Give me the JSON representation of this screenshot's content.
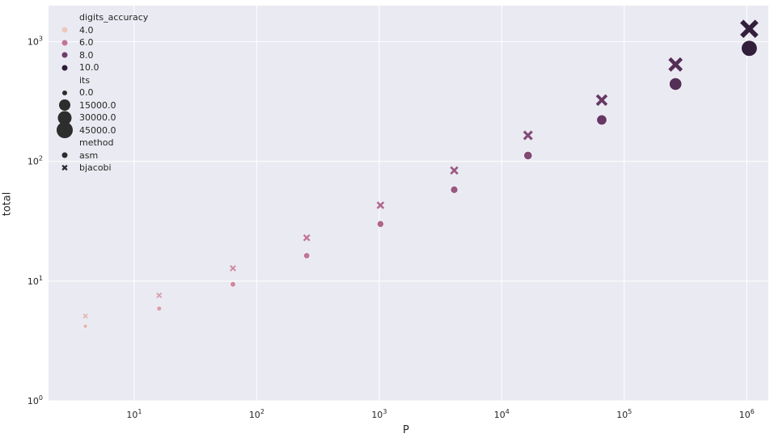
{
  "chart_data": {
    "type": "scatter",
    "xlabel": "P",
    "ylabel": "total",
    "xscale": "log",
    "yscale": "log",
    "xlim": [
      2,
      1500000
    ],
    "ylim": [
      1,
      2000
    ],
    "grid": true,
    "legend_position": "top-left",
    "x_ticks": [
      {
        "value": 10,
        "base": "10",
        "exp": "1"
      },
      {
        "value": 100,
        "base": "10",
        "exp": "2"
      },
      {
        "value": 1000,
        "base": "10",
        "exp": "3"
      },
      {
        "value": 10000,
        "base": "10",
        "exp": "4"
      },
      {
        "value": 100000,
        "base": "10",
        "exp": "5"
      },
      {
        "value": 1000000,
        "base": "10",
        "exp": "6"
      }
    ],
    "y_ticks": [
      {
        "value": 1,
        "base": "10",
        "exp": "0"
      },
      {
        "value": 10,
        "base": "10",
        "exp": "1"
      },
      {
        "value": 100,
        "base": "10",
        "exp": "2"
      },
      {
        "value": 1000,
        "base": "10",
        "exp": "3"
      }
    ],
    "hue": {
      "title": "digits_accuracy",
      "entries": [
        {
          "label": "4.0",
          "color": "#edc7bd"
        },
        {
          "label": "6.0",
          "color": "#c37495"
        },
        {
          "label": "8.0",
          "color": "#6e3b6b"
        },
        {
          "label": "10.0",
          "color": "#2c1c37"
        }
      ]
    },
    "size": {
      "title": "its",
      "entries": [
        {
          "label": "0.0",
          "value": 0
        },
        {
          "label": "15000.0",
          "value": 15000
        },
        {
          "label": "30000.0",
          "value": 30000
        },
        {
          "label": "45000.0",
          "value": 45000
        }
      ]
    },
    "style": {
      "title": "method",
      "entries": [
        {
          "label": "asm",
          "marker": "circle"
        },
        {
          "label": "bjacobi",
          "marker": "cross"
        }
      ]
    },
    "series": [
      {
        "name": "asm",
        "marker": "circle",
        "points": [
          {
            "x": 4,
            "y": 4.2,
            "digits_accuracy": 4.5,
            "its": 120
          },
          {
            "x": 16,
            "y": 5.9,
            "digits_accuracy": 5.0,
            "its": 500
          },
          {
            "x": 64,
            "y": 9.4,
            "digits_accuracy": 5.5,
            "its": 1000
          },
          {
            "x": 256,
            "y": 16.3,
            "digits_accuracy": 6.0,
            "its": 1800
          },
          {
            "x": 1024,
            "y": 30,
            "digits_accuracy": 6.5,
            "its": 2600
          },
          {
            "x": 4096,
            "y": 58,
            "digits_accuracy": 7.0,
            "its": 3800
          },
          {
            "x": 16384,
            "y": 112,
            "digits_accuracy": 7.5,
            "its": 6500
          },
          {
            "x": 65536,
            "y": 222,
            "digits_accuracy": 8.2,
            "its": 12000
          },
          {
            "x": 262144,
            "y": 443,
            "digits_accuracy": 8.8,
            "its": 22000
          },
          {
            "x": 1048576,
            "y": 880,
            "digits_accuracy": 9.8,
            "its": 42000
          }
        ]
      },
      {
        "name": "bjacobi",
        "marker": "cross",
        "points": [
          {
            "x": 4,
            "y": 5.1,
            "digits_accuracy": 4.5,
            "its": 120
          },
          {
            "x": 16,
            "y": 7.6,
            "digits_accuracy": 5.0,
            "its": 500
          },
          {
            "x": 64,
            "y": 12.8,
            "digits_accuracy": 5.5,
            "its": 1000
          },
          {
            "x": 256,
            "y": 23,
            "digits_accuracy": 6.0,
            "its": 1800
          },
          {
            "x": 1024,
            "y": 43,
            "digits_accuracy": 6.5,
            "its": 2600
          },
          {
            "x": 4096,
            "y": 84,
            "digits_accuracy": 7.0,
            "its": 3800
          },
          {
            "x": 16384,
            "y": 165,
            "digits_accuracy": 7.5,
            "its": 6500
          },
          {
            "x": 65536,
            "y": 325,
            "digits_accuracy": 8.2,
            "its": 12000
          },
          {
            "x": 262144,
            "y": 645,
            "digits_accuracy": 8.8,
            "its": 22000
          },
          {
            "x": 1048576,
            "y": 1280,
            "digits_accuracy": 9.8,
            "its": 42000
          }
        ]
      }
    ]
  }
}
